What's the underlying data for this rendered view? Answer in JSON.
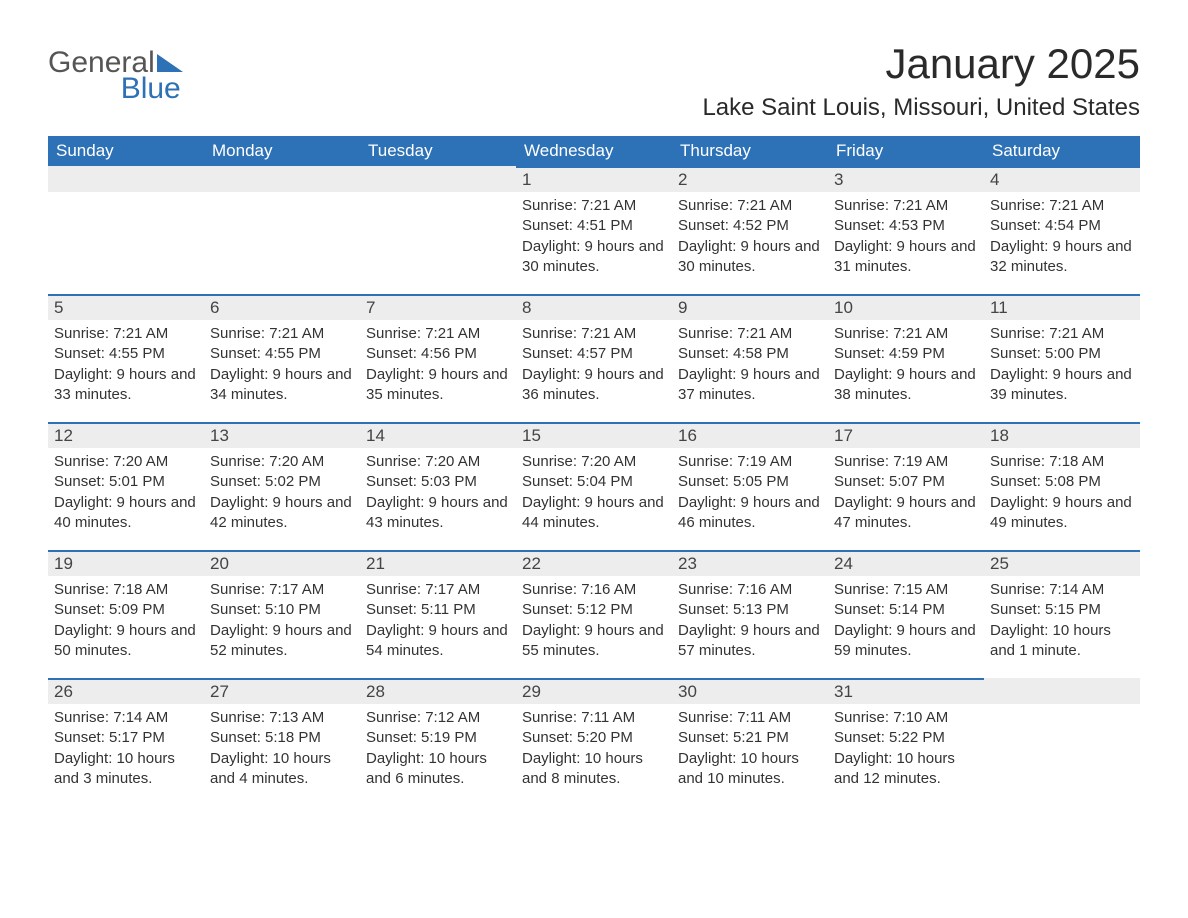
{
  "logo": {
    "text1": "General",
    "text2": "Blue"
  },
  "title": "January 2025",
  "location": "Lake Saint Louis, Missouri, United States",
  "colors": {
    "header_bg": "#2d71b6",
    "header_text": "#ffffff",
    "daynum_bg": "#ededed",
    "border_top": "#2d71b6",
    "body_text": "#333333",
    "page_bg": "#ffffff"
  },
  "weekdays": [
    "Sunday",
    "Monday",
    "Tuesday",
    "Wednesday",
    "Thursday",
    "Friday",
    "Saturday"
  ],
  "weeks": [
    [
      {
        "empty": true
      },
      {
        "empty": true
      },
      {
        "empty": true
      },
      {
        "n": "1",
        "sr": "7:21 AM",
        "ss": "4:51 PM",
        "dl": "9 hours and 30 minutes."
      },
      {
        "n": "2",
        "sr": "7:21 AM",
        "ss": "4:52 PM",
        "dl": "9 hours and 30 minutes."
      },
      {
        "n": "3",
        "sr": "7:21 AM",
        "ss": "4:53 PM",
        "dl": "9 hours and 31 minutes."
      },
      {
        "n": "4",
        "sr": "7:21 AM",
        "ss": "4:54 PM",
        "dl": "9 hours and 32 minutes."
      }
    ],
    [
      {
        "n": "5",
        "sr": "7:21 AM",
        "ss": "4:55 PM",
        "dl": "9 hours and 33 minutes."
      },
      {
        "n": "6",
        "sr": "7:21 AM",
        "ss": "4:55 PM",
        "dl": "9 hours and 34 minutes."
      },
      {
        "n": "7",
        "sr": "7:21 AM",
        "ss": "4:56 PM",
        "dl": "9 hours and 35 minutes."
      },
      {
        "n": "8",
        "sr": "7:21 AM",
        "ss": "4:57 PM",
        "dl": "9 hours and 36 minutes."
      },
      {
        "n": "9",
        "sr": "7:21 AM",
        "ss": "4:58 PM",
        "dl": "9 hours and 37 minutes."
      },
      {
        "n": "10",
        "sr": "7:21 AM",
        "ss": "4:59 PM",
        "dl": "9 hours and 38 minutes."
      },
      {
        "n": "11",
        "sr": "7:21 AM",
        "ss": "5:00 PM",
        "dl": "9 hours and 39 minutes."
      }
    ],
    [
      {
        "n": "12",
        "sr": "7:20 AM",
        "ss": "5:01 PM",
        "dl": "9 hours and 40 minutes."
      },
      {
        "n": "13",
        "sr": "7:20 AM",
        "ss": "5:02 PM",
        "dl": "9 hours and 42 minutes."
      },
      {
        "n": "14",
        "sr": "7:20 AM",
        "ss": "5:03 PM",
        "dl": "9 hours and 43 minutes."
      },
      {
        "n": "15",
        "sr": "7:20 AM",
        "ss": "5:04 PM",
        "dl": "9 hours and 44 minutes."
      },
      {
        "n": "16",
        "sr": "7:19 AM",
        "ss": "5:05 PM",
        "dl": "9 hours and 46 minutes."
      },
      {
        "n": "17",
        "sr": "7:19 AM",
        "ss": "5:07 PM",
        "dl": "9 hours and 47 minutes."
      },
      {
        "n": "18",
        "sr": "7:18 AM",
        "ss": "5:08 PM",
        "dl": "9 hours and 49 minutes."
      }
    ],
    [
      {
        "n": "19",
        "sr": "7:18 AM",
        "ss": "5:09 PM",
        "dl": "9 hours and 50 minutes."
      },
      {
        "n": "20",
        "sr": "7:17 AM",
        "ss": "5:10 PM",
        "dl": "9 hours and 52 minutes."
      },
      {
        "n": "21",
        "sr": "7:17 AM",
        "ss": "5:11 PM",
        "dl": "9 hours and 54 minutes."
      },
      {
        "n": "22",
        "sr": "7:16 AM",
        "ss": "5:12 PM",
        "dl": "9 hours and 55 minutes."
      },
      {
        "n": "23",
        "sr": "7:16 AM",
        "ss": "5:13 PM",
        "dl": "9 hours and 57 minutes."
      },
      {
        "n": "24",
        "sr": "7:15 AM",
        "ss": "5:14 PM",
        "dl": "9 hours and 59 minutes."
      },
      {
        "n": "25",
        "sr": "7:14 AM",
        "ss": "5:15 PM",
        "dl": "10 hours and 1 minute."
      }
    ],
    [
      {
        "n": "26",
        "sr": "7:14 AM",
        "ss": "5:17 PM",
        "dl": "10 hours and 3 minutes."
      },
      {
        "n": "27",
        "sr": "7:13 AM",
        "ss": "5:18 PM",
        "dl": "10 hours and 4 minutes."
      },
      {
        "n": "28",
        "sr": "7:12 AM",
        "ss": "5:19 PM",
        "dl": "10 hours and 6 minutes."
      },
      {
        "n": "29",
        "sr": "7:11 AM",
        "ss": "5:20 PM",
        "dl": "10 hours and 8 minutes."
      },
      {
        "n": "30",
        "sr": "7:11 AM",
        "ss": "5:21 PM",
        "dl": "10 hours and 10 minutes."
      },
      {
        "n": "31",
        "sr": "7:10 AM",
        "ss": "5:22 PM",
        "dl": "10 hours and 12 minutes."
      },
      {
        "empty": true
      }
    ]
  ],
  "labels": {
    "sunrise": "Sunrise: ",
    "sunset": "Sunset: ",
    "daylight": "Daylight: "
  }
}
